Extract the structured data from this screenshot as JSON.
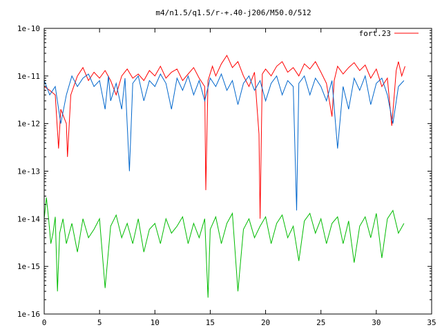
{
  "chart_data": {
    "type": "line",
    "title": "m4/n1.5/q1.5/r-+.40-j206/M50.0/512",
    "xlabel": "",
    "ylabel": "",
    "x_scale": "linear",
    "y_scale": "log",
    "xlim": [
      0,
      35
    ],
    "ylim": [
      1e-16,
      1e-10
    ],
    "x_ticks": [
      "0",
      "5",
      "10",
      "15",
      "20",
      "25",
      "30",
      "35"
    ],
    "y_ticks": [
      "1e-16",
      "1e-15",
      "1e-14",
      "1e-13",
      "1e-12",
      "1e-11",
      "1e-10"
    ],
    "grid": false,
    "legend_position": "top-right",
    "series": [
      {
        "name": "fort.23",
        "color": "#ff0000",
        "points": [
          [
            0.0,
            6e-12
          ],
          [
            0.5,
            5e-12
          ],
          [
            1.0,
            4e-12
          ],
          [
            1.3,
            3e-13
          ],
          [
            1.5,
            2e-12
          ],
          [
            2.0,
            1e-12
          ],
          [
            2.1,
            2e-13
          ],
          [
            2.4,
            4e-12
          ],
          [
            3.0,
            1e-11
          ],
          [
            3.5,
            1.5e-11
          ],
          [
            4.0,
            8e-12
          ],
          [
            4.5,
            1.2e-11
          ],
          [
            5.0,
            9e-12
          ],
          [
            5.5,
            1.3e-11
          ],
          [
            6.0,
            8e-12
          ],
          [
            6.5,
            4e-12
          ],
          [
            7.0,
            1e-11
          ],
          [
            7.5,
            1.4e-11
          ],
          [
            8.0,
            9e-12
          ],
          [
            8.5,
            1.1e-11
          ],
          [
            9.0,
            8e-12
          ],
          [
            9.5,
            1.3e-11
          ],
          [
            10.0,
            1e-11
          ],
          [
            10.5,
            1.6e-11
          ],
          [
            11.0,
            9e-12
          ],
          [
            11.5,
            1.2e-11
          ],
          [
            12.0,
            1.4e-11
          ],
          [
            12.5,
            8e-12
          ],
          [
            13.0,
            1.1e-11
          ],
          [
            13.5,
            1.5e-11
          ],
          [
            14.0,
            9e-12
          ],
          [
            14.5,
            6e-12
          ],
          [
            14.6,
            4e-14
          ],
          [
            14.8,
            8e-12
          ],
          [
            15.2,
            1.6e-11
          ],
          [
            15.5,
            1e-11
          ],
          [
            16.0,
            1.8e-11
          ],
          [
            16.5,
            2.7e-11
          ],
          [
            17.0,
            1.5e-11
          ],
          [
            17.5,
            2e-11
          ],
          [
            18.0,
            1e-11
          ],
          [
            18.5,
            6e-12
          ],
          [
            19.0,
            1.2e-11
          ],
          [
            19.4,
            6e-13
          ],
          [
            19.5,
            1e-14
          ],
          [
            19.7,
            1.1e-11
          ],
          [
            20.0,
            1.4e-11
          ],
          [
            20.5,
            1e-11
          ],
          [
            21.0,
            1.6e-11
          ],
          [
            21.5,
            2e-11
          ],
          [
            22.0,
            1.2e-11
          ],
          [
            22.5,
            1.5e-11
          ],
          [
            23.0,
            1e-11
          ],
          [
            23.5,
            1.8e-11
          ],
          [
            24.0,
            1.4e-11
          ],
          [
            24.5,
            2e-11
          ],
          [
            25.0,
            1.2e-11
          ],
          [
            25.5,
            7e-12
          ],
          [
            26.0,
            1.4e-12
          ],
          [
            26.2,
            8e-12
          ],
          [
            26.5,
            1.6e-11
          ],
          [
            27.0,
            1.1e-11
          ],
          [
            27.5,
            1.5e-11
          ],
          [
            28.0,
            1.9e-11
          ],
          [
            28.5,
            1.3e-11
          ],
          [
            29.0,
            1.7e-11
          ],
          [
            29.5,
            9e-12
          ],
          [
            30.0,
            1.4e-11
          ],
          [
            30.5,
            6e-12
          ],
          [
            31.0,
            9e-12
          ],
          [
            31.4,
            9e-13
          ],
          [
            31.8,
            1.3e-11
          ],
          [
            32.0,
            2e-11
          ],
          [
            32.3,
            1e-11
          ],
          [
            32.6,
            1.6e-11
          ]
        ]
      },
      {
        "name": "",
        "color": "#0066cc",
        "points": [
          [
            0.0,
            8e-12
          ],
          [
            0.5,
            4e-12
          ],
          [
            1.0,
            6e-12
          ],
          [
            1.5,
            1e-12
          ],
          [
            2.0,
            4e-12
          ],
          [
            2.5,
            1e-11
          ],
          [
            3.0,
            6e-12
          ],
          [
            3.5,
            9e-12
          ],
          [
            4.0,
            1.1e-11
          ],
          [
            4.5,
            6e-12
          ],
          [
            5.0,
            8e-12
          ],
          [
            5.5,
            2e-12
          ],
          [
            5.8,
            1e-11
          ],
          [
            6.0,
            3e-12
          ],
          [
            6.5,
            7e-12
          ],
          [
            7.0,
            2e-12
          ],
          [
            7.3,
            9e-12
          ],
          [
            7.7,
            1e-13
          ],
          [
            8.0,
            7e-12
          ],
          [
            8.5,
            1e-11
          ],
          [
            9.0,
            3e-12
          ],
          [
            9.5,
            8e-12
          ],
          [
            10.0,
            6e-12
          ],
          [
            10.5,
            1.1e-11
          ],
          [
            11.0,
            7e-12
          ],
          [
            11.5,
            2e-12
          ],
          [
            12.0,
            9e-12
          ],
          [
            12.5,
            5e-12
          ],
          [
            13.0,
            1e-11
          ],
          [
            13.5,
            4e-12
          ],
          [
            14.0,
            8e-12
          ],
          [
            14.5,
            3e-12
          ],
          [
            15.0,
            9e-12
          ],
          [
            15.5,
            6e-12
          ],
          [
            16.0,
            1.1e-11
          ],
          [
            16.5,
            5e-12
          ],
          [
            17.0,
            8e-12
          ],
          [
            17.5,
            2.5e-12
          ],
          [
            18.0,
            7e-12
          ],
          [
            18.5,
            1e-11
          ],
          [
            19.0,
            5e-12
          ],
          [
            19.5,
            8e-12
          ],
          [
            20.0,
            3e-12
          ],
          [
            20.5,
            7e-12
          ],
          [
            21.0,
            1e-11
          ],
          [
            21.5,
            4e-12
          ],
          [
            22.0,
            8e-12
          ],
          [
            22.5,
            6e-12
          ],
          [
            22.8,
            1.5e-14
          ],
          [
            23.0,
            7e-12
          ],
          [
            23.5,
            1e-11
          ],
          [
            24.0,
            4e-12
          ],
          [
            24.5,
            9e-12
          ],
          [
            25.0,
            6e-12
          ],
          [
            25.5,
            3e-12
          ],
          [
            26.0,
            8e-12
          ],
          [
            26.5,
            3e-13
          ],
          [
            27.0,
            6e-12
          ],
          [
            27.5,
            2e-12
          ],
          [
            28.0,
            9e-12
          ],
          [
            28.5,
            5e-12
          ],
          [
            29.0,
            1e-11
          ],
          [
            29.5,
            2.5e-12
          ],
          [
            30.0,
            7e-12
          ],
          [
            30.5,
            9e-12
          ],
          [
            31.0,
            4e-12
          ],
          [
            31.5,
            1e-12
          ],
          [
            32.0,
            6e-12
          ],
          [
            32.5,
            8e-12
          ]
        ]
      },
      {
        "name": "",
        "color": "#00bb00",
        "points": [
          [
            0.0,
            1e-14
          ],
          [
            0.2,
            2.8e-14
          ],
          [
            0.4,
            1e-14
          ],
          [
            0.6,
            3e-15
          ],
          [
            0.8,
            5e-15
          ],
          [
            1.0,
            1.1e-14
          ],
          [
            1.2,
            3e-16
          ],
          [
            1.4,
            5e-15
          ],
          [
            1.7,
            1e-14
          ],
          [
            2.0,
            3e-15
          ],
          [
            2.5,
            8e-15
          ],
          [
            3.0,
            2e-15
          ],
          [
            3.5,
            1e-14
          ],
          [
            4.0,
            4e-15
          ],
          [
            4.5,
            6e-15
          ],
          [
            5.0,
            1e-14
          ],
          [
            5.5,
            3.5e-16
          ],
          [
            6.0,
            7e-15
          ],
          [
            6.5,
            1.2e-14
          ],
          [
            7.0,
            4e-15
          ],
          [
            7.5,
            8e-15
          ],
          [
            8.0,
            3e-15
          ],
          [
            8.5,
            1e-14
          ],
          [
            9.0,
            2e-15
          ],
          [
            9.5,
            6e-15
          ],
          [
            10.0,
            8e-15
          ],
          [
            10.5,
            3e-15
          ],
          [
            11.0,
            1e-14
          ],
          [
            11.5,
            5e-15
          ],
          [
            12.0,
            7e-15
          ],
          [
            12.5,
            1.1e-14
          ],
          [
            13.0,
            3e-15
          ],
          [
            13.5,
            8e-15
          ],
          [
            14.0,
            4e-15
          ],
          [
            14.5,
            1e-14
          ],
          [
            14.8,
            2.2e-16
          ],
          [
            15.0,
            6e-15
          ],
          [
            15.5,
            1.1e-14
          ],
          [
            16.0,
            3e-15
          ],
          [
            16.5,
            8e-15
          ],
          [
            17.0,
            1.3e-14
          ],
          [
            17.5,
            3e-16
          ],
          [
            18.0,
            6e-15
          ],
          [
            18.5,
            1e-14
          ],
          [
            19.0,
            4e-15
          ],
          [
            19.5,
            7e-15
          ],
          [
            20.0,
            1.1e-14
          ],
          [
            20.5,
            3e-15
          ],
          [
            21.0,
            8e-15
          ],
          [
            21.5,
            1.2e-14
          ],
          [
            22.0,
            4e-15
          ],
          [
            22.5,
            7e-15
          ],
          [
            23.0,
            1.3e-15
          ],
          [
            23.5,
            9e-15
          ],
          [
            24.0,
            1.3e-14
          ],
          [
            24.5,
            5e-15
          ],
          [
            25.0,
            1e-14
          ],
          [
            25.5,
            3e-15
          ],
          [
            26.0,
            8e-15
          ],
          [
            26.5,
            1.1e-14
          ],
          [
            27.0,
            3e-15
          ],
          [
            27.5,
            9e-15
          ],
          [
            28.0,
            1.2e-15
          ],
          [
            28.5,
            7e-15
          ],
          [
            29.0,
            1.1e-14
          ],
          [
            29.5,
            4e-15
          ],
          [
            30.0,
            1.3e-14
          ],
          [
            30.5,
            1.5e-15
          ],
          [
            31.0,
            1e-14
          ],
          [
            31.5,
            1.5e-14
          ],
          [
            32.0,
            5e-15
          ],
          [
            32.5,
            8e-15
          ]
        ]
      }
    ]
  }
}
